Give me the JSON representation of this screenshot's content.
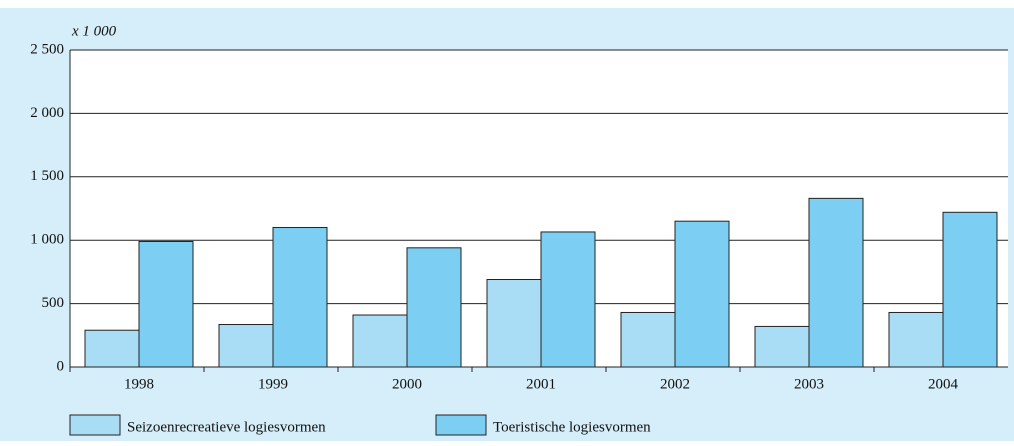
{
  "chart_data": {
    "type": "bar",
    "y_unit_label": "x 1 000",
    "categories": [
      "1998",
      "1999",
      "2000",
      "2001",
      "2002",
      "2003",
      "2004"
    ],
    "series": [
      {
        "name": "Seizoenrecreatieve logiesvormen",
        "color": "#a9ddf6",
        "values": [
          290,
          335,
          410,
          690,
          430,
          320,
          430
        ]
      },
      {
        "name": "Toeristische logiesvormen",
        "color": "#7ccff2",
        "values": [
          990,
          1100,
          940,
          1065,
          1150,
          1330,
          1220
        ]
      }
    ],
    "ylim": [
      0,
      2500
    ],
    "yticks": [
      0,
      500,
      {
        "value": 1000,
        "label": "1 000"
      },
      {
        "value": 1500,
        "label": "1 500"
      },
      {
        "value": 2000,
        "label": "2 000"
      },
      {
        "value": 2500,
        "label": "2 500"
      }
    ],
    "grid": true
  }
}
